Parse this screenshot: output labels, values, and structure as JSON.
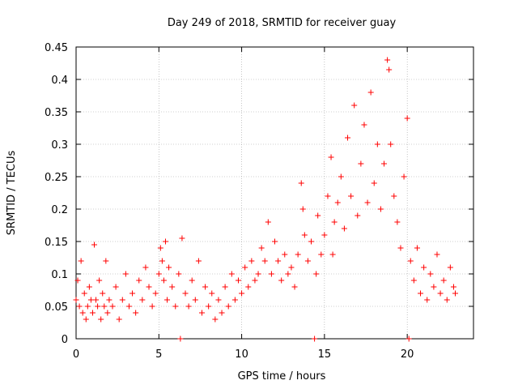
{
  "chart_data": {
    "type": "scatter",
    "title": "Day 249 of 2018, SRMTID for receiver guay",
    "xlabel": "GPS time / hours",
    "ylabel": "SRMTID / TECUs",
    "xlim": [
      0,
      24
    ],
    "ylim": [
      0,
      0.45
    ],
    "x_ticks": [
      0,
      5,
      10,
      15,
      20
    ],
    "x_tick_labels": [
      "0",
      "5",
      "10",
      "15",
      "20"
    ],
    "y_ticks": [
      0,
      0.05,
      0.1,
      0.15,
      0.2,
      0.25,
      0.3,
      0.35,
      0.4,
      0.45
    ],
    "y_tick_labels": [
      "0",
      "0.05",
      "0.1",
      "0.15",
      "0.2",
      "0.25",
      "0.3",
      "0.35",
      "0.4",
      "0.45"
    ],
    "grid": true,
    "marker": "plus",
    "series": [
      {
        "name": "SRMTID",
        "color": "#ff0000",
        "points": [
          [
            0.0,
            0.06
          ],
          [
            0.1,
            0.09
          ],
          [
            0.2,
            0.05
          ],
          [
            0.3,
            0.12
          ],
          [
            0.4,
            0.04
          ],
          [
            0.5,
            0.07
          ],
          [
            0.6,
            0.03
          ],
          [
            0.7,
            0.05
          ],
          [
            0.8,
            0.08
          ],
          [
            0.9,
            0.06
          ],
          [
            1.0,
            0.04
          ],
          [
            1.1,
            0.145
          ],
          [
            1.2,
            0.06
          ],
          [
            1.3,
            0.05
          ],
          [
            1.4,
            0.09
          ],
          [
            1.5,
            0.03
          ],
          [
            1.6,
            0.07
          ],
          [
            1.7,
            0.05
          ],
          [
            1.8,
            0.12
          ],
          [
            1.9,
            0.04
          ],
          [
            2.0,
            0.06
          ],
          [
            2.2,
            0.05
          ],
          [
            2.4,
            0.08
          ],
          [
            2.6,
            0.03
          ],
          [
            2.8,
            0.06
          ],
          [
            3.0,
            0.1
          ],
          [
            3.2,
            0.05
          ],
          [
            3.4,
            0.07
          ],
          [
            3.6,
            0.04
          ],
          [
            3.8,
            0.09
          ],
          [
            4.0,
            0.06
          ],
          [
            4.2,
            0.11
          ],
          [
            4.4,
            0.08
          ],
          [
            4.6,
            0.05
          ],
          [
            4.8,
            0.07
          ],
          [
            5.0,
            0.1
          ],
          [
            5.1,
            0.14
          ],
          [
            5.2,
            0.12
          ],
          [
            5.3,
            0.09
          ],
          [
            5.4,
            0.15
          ],
          [
            5.5,
            0.06
          ],
          [
            5.6,
            0.11
          ],
          [
            5.8,
            0.08
          ],
          [
            6.0,
            0.05
          ],
          [
            6.2,
            0.1
          ],
          [
            6.3,
            0.0
          ],
          [
            6.4,
            0.155
          ],
          [
            6.6,
            0.07
          ],
          [
            6.8,
            0.05
          ],
          [
            7.0,
            0.09
          ],
          [
            7.2,
            0.06
          ],
          [
            7.4,
            0.12
          ],
          [
            7.6,
            0.04
          ],
          [
            7.8,
            0.08
          ],
          [
            8.0,
            0.05
          ],
          [
            8.2,
            0.07
          ],
          [
            8.4,
            0.03
          ],
          [
            8.6,
            0.06
          ],
          [
            8.8,
            0.04
          ],
          [
            9.0,
            0.08
          ],
          [
            9.2,
            0.05
          ],
          [
            9.4,
            0.1
          ],
          [
            9.6,
            0.06
          ],
          [
            9.8,
            0.09
          ],
          [
            10.0,
            0.07
          ],
          [
            10.2,
            0.11
          ],
          [
            10.4,
            0.08
          ],
          [
            10.6,
            0.12
          ],
          [
            10.8,
            0.09
          ],
          [
            11.0,
            0.1
          ],
          [
            11.2,
            0.14
          ],
          [
            11.4,
            0.12
          ],
          [
            11.6,
            0.18
          ],
          [
            11.8,
            0.1
          ],
          [
            12.0,
            0.15
          ],
          [
            12.2,
            0.12
          ],
          [
            12.4,
            0.09
          ],
          [
            12.6,
            0.13
          ],
          [
            12.8,
            0.1
          ],
          [
            13.0,
            0.11
          ],
          [
            13.2,
            0.08
          ],
          [
            13.4,
            0.13
          ],
          [
            13.6,
            0.24
          ],
          [
            13.7,
            0.2
          ],
          [
            13.8,
            0.16
          ],
          [
            14.0,
            0.12
          ],
          [
            14.2,
            0.15
          ],
          [
            14.4,
            0.0
          ],
          [
            14.5,
            0.1
          ],
          [
            14.6,
            0.19
          ],
          [
            14.8,
            0.13
          ],
          [
            15.0,
            0.16
          ],
          [
            15.2,
            0.22
          ],
          [
            15.4,
            0.28
          ],
          [
            15.5,
            0.13
          ],
          [
            15.6,
            0.18
          ],
          [
            15.8,
            0.21
          ],
          [
            16.0,
            0.25
          ],
          [
            16.2,
            0.17
          ],
          [
            16.4,
            0.31
          ],
          [
            16.6,
            0.22
          ],
          [
            16.8,
            0.36
          ],
          [
            17.0,
            0.19
          ],
          [
            17.2,
            0.27
          ],
          [
            17.4,
            0.33
          ],
          [
            17.6,
            0.21
          ],
          [
            17.8,
            0.38
          ],
          [
            18.0,
            0.24
          ],
          [
            18.2,
            0.3
          ],
          [
            18.4,
            0.2
          ],
          [
            18.6,
            0.27
          ],
          [
            18.8,
            0.43
          ],
          [
            18.9,
            0.415
          ],
          [
            19.0,
            0.3
          ],
          [
            19.2,
            0.22
          ],
          [
            19.4,
            0.18
          ],
          [
            19.6,
            0.14
          ],
          [
            19.8,
            0.25
          ],
          [
            20.0,
            0.34
          ],
          [
            20.1,
            0.0
          ],
          [
            20.2,
            0.12
          ],
          [
            20.4,
            0.09
          ],
          [
            20.6,
            0.14
          ],
          [
            20.8,
            0.07
          ],
          [
            21.0,
            0.11
          ],
          [
            21.2,
            0.06
          ],
          [
            21.4,
            0.1
          ],
          [
            21.6,
            0.08
          ],
          [
            21.8,
            0.13
          ],
          [
            22.0,
            0.07
          ],
          [
            22.2,
            0.09
          ],
          [
            22.4,
            0.06
          ],
          [
            22.6,
            0.11
          ],
          [
            22.8,
            0.08
          ],
          [
            22.9,
            0.07
          ]
        ]
      }
    ]
  }
}
